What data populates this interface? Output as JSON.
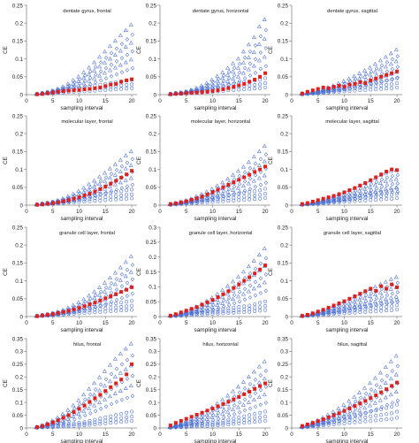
{
  "colors": {
    "blue": "#4a6fd0",
    "red": "#e0201c",
    "axis": "#888888",
    "text": "#222222"
  },
  "shared": {
    "xlabel": "sampling interval",
    "ylabel": "CE",
    "xticks": [
      0,
      5,
      10,
      15,
      20
    ]
  },
  "chart_data": [
    {
      "type": "scatter",
      "title": "dentate gyrus, frontal",
      "ylim": [
        0,
        0.25
      ],
      "yticks": [
        "0",
        "0.05",
        "0.1",
        "0.15",
        "0.2",
        "0.25"
      ],
      "x": [
        2,
        3,
        4,
        5,
        6,
        7,
        8,
        9,
        10,
        11,
        12,
        13,
        14,
        15,
        16,
        17,
        18,
        19,
        20
      ],
      "red": [
        0.001,
        0.002,
        0.004,
        0.006,
        0.008,
        0.01,
        0.011,
        0.012,
        0.013,
        0.015,
        0.016,
        0.018,
        0.02,
        0.024,
        0.028,
        0.03,
        0.036,
        0.04,
        0.043
      ],
      "blue_top": [
        0.002,
        0.004,
        0.007,
        0.011,
        0.016,
        0.022,
        0.03,
        0.04,
        0.05,
        0.062,
        0.075,
        0.09,
        0.105,
        0.12,
        0.135,
        0.15,
        0.165,
        0.18,
        0.195
      ],
      "blue_low": [
        0.001,
        0.002,
        0.003,
        0.004,
        0.005,
        0.006,
        0.007,
        0.008,
        0.008,
        0.009,
        0.01,
        0.011,
        0.012,
        0.013,
        0.014,
        0.015,
        0.016,
        0.017,
        0.018
      ]
    },
    {
      "type": "scatter",
      "title": "dentate gyrus, horizontal",
      "ylim": [
        0,
        0.25
      ],
      "yticks": [
        "0",
        "0.05",
        "0.1",
        "0.15",
        "0.2",
        "0.25"
      ],
      "x": [
        2,
        3,
        4,
        5,
        6,
        7,
        8,
        9,
        10,
        11,
        12,
        13,
        14,
        15,
        16,
        17,
        18,
        19,
        20
      ],
      "red": [
        0.001,
        0.002,
        0.003,
        0.004,
        0.005,
        0.006,
        0.007,
        0.008,
        0.01,
        0.012,
        0.015,
        0.018,
        0.022,
        0.026,
        0.03,
        0.036,
        0.042,
        0.05,
        0.06
      ],
      "blue_top": [
        0.002,
        0.004,
        0.006,
        0.009,
        0.013,
        0.018,
        0.024,
        0.032,
        0.041,
        0.051,
        0.062,
        0.074,
        0.087,
        0.1,
        0.12,
        0.14,
        0.16,
        0.19,
        0.21
      ],
      "blue_low": [
        0.001,
        0.002,
        0.002,
        0.003,
        0.004,
        0.005,
        0.006,
        0.007,
        0.008,
        0.009,
        0.01,
        0.012,
        0.013,
        0.014,
        0.015,
        0.016,
        0.017,
        0.018,
        0.02
      ]
    },
    {
      "type": "scatter",
      "title": "dentate gyrus, sagittal",
      "ylim": [
        0,
        0.25
      ],
      "yticks": [
        "0",
        "0.05",
        "0.1",
        "0.15",
        "0.2",
        "0.25"
      ],
      "x": [
        2,
        3,
        4,
        5,
        6,
        7,
        8,
        9,
        10,
        11,
        12,
        13,
        14,
        15,
        16,
        17,
        18,
        19,
        20
      ],
      "red": [
        0.003,
        0.008,
        0.012,
        0.016,
        0.02,
        0.018,
        0.022,
        0.025,
        0.022,
        0.028,
        0.03,
        0.035,
        0.032,
        0.04,
        0.045,
        0.05,
        0.055,
        0.06,
        0.065
      ],
      "blue_top": [
        0.003,
        0.005,
        0.008,
        0.011,
        0.015,
        0.02,
        0.025,
        0.031,
        0.037,
        0.044,
        0.051,
        0.059,
        0.067,
        0.075,
        0.085,
        0.095,
        0.105,
        0.115,
        0.125
      ],
      "blue_low": [
        0.001,
        0.002,
        0.003,
        0.004,
        0.005,
        0.006,
        0.007,
        0.008,
        0.009,
        0.01,
        0.011,
        0.012,
        0.013,
        0.014,
        0.015,
        0.016,
        0.017,
        0.018,
        0.02
      ]
    },
    {
      "type": "scatter",
      "title": "molecular layer, frontal",
      "ylim": [
        0,
        0.25
      ],
      "yticks": [
        "0",
        "0.05",
        "0.1",
        "0.15",
        "0.2",
        "0.25"
      ],
      "x": [
        2,
        3,
        4,
        5,
        6,
        7,
        8,
        9,
        10,
        11,
        12,
        13,
        14,
        15,
        16,
        17,
        18,
        19,
        20
      ],
      "red": [
        0.001,
        0.002,
        0.004,
        0.006,
        0.008,
        0.011,
        0.014,
        0.018,
        0.022,
        0.027,
        0.032,
        0.038,
        0.045,
        0.052,
        0.06,
        0.068,
        0.077,
        0.086,
        0.096
      ],
      "blue_top": [
        0.002,
        0.004,
        0.006,
        0.009,
        0.013,
        0.018,
        0.024,
        0.031,
        0.039,
        0.048,
        0.058,
        0.068,
        0.079,
        0.09,
        0.102,
        0.114,
        0.126,
        0.138,
        0.15
      ],
      "blue_low": [
        0.001,
        0.002,
        0.003,
        0.004,
        0.005,
        0.006,
        0.007,
        0.008,
        0.009,
        0.01,
        0.011,
        0.012,
        0.013,
        0.014,
        0.015,
        0.016,
        0.017,
        0.018,
        0.019
      ]
    },
    {
      "type": "scatter",
      "title": "molecular layer, horizontal",
      "ylim": [
        0,
        0.25
      ],
      "yticks": [
        "0",
        "0.05",
        "0.1",
        "0.15",
        "0.2",
        "0.25"
      ],
      "x": [
        2,
        3,
        4,
        5,
        6,
        7,
        8,
        9,
        10,
        11,
        12,
        13,
        14,
        15,
        16,
        17,
        18,
        19,
        20
      ],
      "red": [
        0.003,
        0.005,
        0.008,
        0.011,
        0.015,
        0.019,
        0.024,
        0.03,
        0.036,
        0.043,
        0.05,
        0.057,
        0.064,
        0.071,
        0.078,
        0.085,
        0.093,
        0.1,
        0.108
      ],
      "blue_top": [
        0.003,
        0.006,
        0.009,
        0.013,
        0.018,
        0.024,
        0.03,
        0.037,
        0.045,
        0.054,
        0.063,
        0.073,
        0.084,
        0.095,
        0.107,
        0.12,
        0.135,
        0.15,
        0.165
      ],
      "blue_low": [
        0.001,
        0.002,
        0.003,
        0.004,
        0.005,
        0.006,
        0.007,
        0.008,
        0.009,
        0.01,
        0.011,
        0.012,
        0.013,
        0.014,
        0.015,
        0.016,
        0.017,
        0.018,
        0.02
      ]
    },
    {
      "type": "scatter",
      "title": "molecular layer, sagittal",
      "ylim": [
        0,
        0.25
      ],
      "yticks": [
        "0",
        "0.05",
        "0.1",
        "0.15",
        "0.2",
        "0.25"
      ],
      "x": [
        2,
        3,
        4,
        5,
        6,
        7,
        8,
        9,
        10,
        11,
        12,
        13,
        14,
        15,
        16,
        17,
        18,
        19,
        20
      ],
      "red": [
        0.003,
        0.006,
        0.01,
        0.014,
        0.018,
        0.022,
        0.026,
        0.031,
        0.036,
        0.042,
        0.048,
        0.055,
        0.062,
        0.07,
        0.078,
        0.086,
        0.094,
        0.1,
        0.098
      ],
      "blue_top": [
        0.003,
        0.005,
        0.008,
        0.011,
        0.015,
        0.019,
        0.024,
        0.029,
        0.035,
        0.041,
        0.047,
        0.054,
        0.061,
        0.068,
        0.075,
        0.083,
        0.09,
        0.095,
        0.098
      ],
      "blue_low": [
        0.001,
        0.002,
        0.003,
        0.004,
        0.005,
        0.006,
        0.007,
        0.008,
        0.009,
        0.01,
        0.011,
        0.012,
        0.013,
        0.014,
        0.015,
        0.016,
        0.017,
        0.018,
        0.02
      ]
    },
    {
      "type": "scatter",
      "title": "granule cell layer, frontal",
      "ylim": [
        0,
        0.25
      ],
      "yticks": [
        "0",
        "0.05",
        "0.1",
        "0.15",
        "0.2",
        "0.25"
      ],
      "x": [
        2,
        3,
        4,
        5,
        6,
        7,
        8,
        9,
        10,
        11,
        12,
        13,
        14,
        15,
        16,
        17,
        18,
        19,
        20
      ],
      "red": [
        0.001,
        0.003,
        0.005,
        0.007,
        0.01,
        0.013,
        0.016,
        0.02,
        0.024,
        0.029,
        0.034,
        0.039,
        0.045,
        0.051,
        0.057,
        0.063,
        0.069,
        0.075,
        0.082
      ],
      "blue_top": [
        0.002,
        0.004,
        0.006,
        0.009,
        0.013,
        0.018,
        0.024,
        0.031,
        0.039,
        0.048,
        0.058,
        0.069,
        0.081,
        0.094,
        0.108,
        0.122,
        0.137,
        0.152,
        0.168
      ],
      "blue_low": [
        0.001,
        0.002,
        0.003,
        0.004,
        0.005,
        0.006,
        0.007,
        0.008,
        0.009,
        0.01,
        0.011,
        0.012,
        0.013,
        0.014,
        0.015,
        0.016,
        0.017,
        0.018,
        0.019
      ]
    },
    {
      "type": "scatter",
      "title": "granule cell layer, horizontal",
      "ylim": [
        0,
        0.3
      ],
      "yticks": [
        "0",
        "0.05",
        "0.1",
        "0.15",
        "0.2",
        "0.25",
        "0.3"
      ],
      "x": [
        2,
        3,
        4,
        5,
        6,
        7,
        8,
        9,
        10,
        11,
        12,
        13,
        14,
        15,
        16,
        17,
        18,
        19,
        20
      ],
      "red": [
        0.003,
        0.008,
        0.014,
        0.02,
        0.026,
        0.032,
        0.04,
        0.048,
        0.056,
        0.065,
        0.075,
        0.085,
        0.096,
        0.108,
        0.12,
        0.132,
        0.145,
        0.158,
        0.172
      ],
      "blue_top": [
        0.003,
        0.007,
        0.012,
        0.018,
        0.025,
        0.033,
        0.042,
        0.052,
        0.063,
        0.075,
        0.088,
        0.102,
        0.117,
        0.133,
        0.15,
        0.168,
        0.187,
        0.207,
        0.228
      ],
      "blue_low": [
        0.001,
        0.002,
        0.003,
        0.004,
        0.005,
        0.006,
        0.007,
        0.008,
        0.009,
        0.01,
        0.011,
        0.012,
        0.013,
        0.014,
        0.015,
        0.016,
        0.018,
        0.02,
        0.022
      ]
    },
    {
      "type": "scatter",
      "title": "granule cell layer, sagittal",
      "ylim": [
        0,
        0.25
      ],
      "yticks": [
        "0",
        "0.05",
        "0.1",
        "0.15",
        "0.2",
        "0.25"
      ],
      "x": [
        2,
        3,
        4,
        5,
        6,
        7,
        8,
        9,
        10,
        11,
        12,
        13,
        14,
        15,
        16,
        17,
        18,
        19,
        20
      ],
      "red": [
        0.002,
        0.005,
        0.009,
        0.014,
        0.019,
        0.025,
        0.031,
        0.037,
        0.043,
        0.05,
        0.057,
        0.064,
        0.071,
        0.078,
        0.072,
        0.085,
        0.078,
        0.09,
        0.082
      ],
      "blue_top": [
        0.002,
        0.005,
        0.009,
        0.013,
        0.018,
        0.023,
        0.029,
        0.035,
        0.041,
        0.048,
        0.055,
        0.062,
        0.069,
        0.076,
        0.083,
        0.09,
        0.097,
        0.104,
        0.11
      ],
      "blue_low": [
        0.001,
        0.002,
        0.003,
        0.004,
        0.005,
        0.006,
        0.007,
        0.008,
        0.009,
        0.01,
        0.011,
        0.012,
        0.013,
        0.014,
        0.015,
        0.016,
        0.017,
        0.018,
        0.02
      ]
    },
    {
      "type": "scatter",
      "title": "hilus, frontal",
      "ylim": [
        0,
        0.35
      ],
      "yticks": [
        "0",
        "0.05",
        "0.1",
        "0.15",
        "0.2",
        "0.25",
        "0.3",
        "0.35"
      ],
      "x": [
        2,
        3,
        4,
        5,
        6,
        7,
        8,
        9,
        10,
        11,
        12,
        13,
        14,
        15,
        16,
        17,
        18,
        19,
        20
      ],
      "red": [
        0.003,
        0.008,
        0.014,
        0.022,
        0.03,
        0.04,
        0.05,
        0.062,
        0.075,
        0.088,
        0.102,
        0.116,
        0.13,
        0.145,
        0.16,
        0.175,
        0.19,
        0.21,
        0.25
      ],
      "blue_top": [
        0.004,
        0.01,
        0.018,
        0.028,
        0.04,
        0.054,
        0.07,
        0.088,
        0.108,
        0.13,
        0.152,
        0.175,
        0.198,
        0.222,
        0.246,
        0.27,
        0.29,
        0.31,
        0.33
      ],
      "blue_low": [
        0.001,
        0.002,
        0.003,
        0.004,
        0.005,
        0.006,
        0.007,
        0.008,
        0.009,
        0.01,
        0.012,
        0.014,
        0.016,
        0.018,
        0.02,
        0.022,
        0.024,
        0.026,
        0.028
      ]
    },
    {
      "type": "scatter",
      "title": "hilus, horizontal",
      "ylim": [
        0,
        0.35
      ],
      "yticks": [
        "0",
        "0.05",
        "0.1",
        "0.15",
        "0.2",
        "0.25",
        "0.3",
        "0.35"
      ],
      "x": [
        2,
        3,
        4,
        5,
        6,
        7,
        8,
        9,
        10,
        11,
        12,
        13,
        14,
        15,
        16,
        17,
        18,
        19,
        20
      ],
      "red": [
        0.01,
        0.02,
        0.028,
        0.036,
        0.044,
        0.052,
        0.06,
        0.068,
        0.076,
        0.085,
        0.094,
        0.103,
        0.112,
        0.122,
        0.132,
        0.142,
        0.153,
        0.164,
        0.175
      ],
      "blue_top": [
        0.005,
        0.011,
        0.018,
        0.026,
        0.035,
        0.045,
        0.056,
        0.068,
        0.081,
        0.095,
        0.11,
        0.126,
        0.143,
        0.161,
        0.18,
        0.2,
        0.22,
        0.24,
        0.26
      ],
      "blue_low": [
        0.001,
        0.002,
        0.003,
        0.004,
        0.005,
        0.006,
        0.007,
        0.008,
        0.009,
        0.01,
        0.012,
        0.014,
        0.016,
        0.018,
        0.02,
        0.022,
        0.024,
        0.026,
        0.028
      ]
    },
    {
      "type": "scatter",
      "title": "hilus, sagittal",
      "ylim": [
        0,
        0.35
      ],
      "yticks": [
        "0",
        "0.05",
        "0.1",
        "0.15",
        "0.2",
        "0.25",
        "0.3",
        "0.35"
      ],
      "x": [
        2,
        3,
        4,
        5,
        6,
        7,
        8,
        9,
        10,
        11,
        12,
        13,
        14,
        15,
        16,
        17,
        18,
        19,
        20
      ],
      "red": [
        0.008,
        0.014,
        0.02,
        0.027,
        0.034,
        0.042,
        0.05,
        0.058,
        0.067,
        0.076,
        0.086,
        0.096,
        0.106,
        0.117,
        0.128,
        0.14,
        0.152,
        0.165,
        0.178
      ],
      "blue_top": [
        0.006,
        0.013,
        0.021,
        0.03,
        0.04,
        0.051,
        0.063,
        0.076,
        0.09,
        0.105,
        0.121,
        0.138,
        0.156,
        0.175,
        0.195,
        0.216,
        0.238,
        0.26,
        0.282
      ],
      "blue_low": [
        0.002,
        0.004,
        0.006,
        0.008,
        0.01,
        0.012,
        0.014,
        0.016,
        0.018,
        0.02,
        0.022,
        0.024,
        0.026,
        0.028,
        0.03,
        0.032,
        0.034,
        0.036,
        0.04
      ]
    }
  ]
}
